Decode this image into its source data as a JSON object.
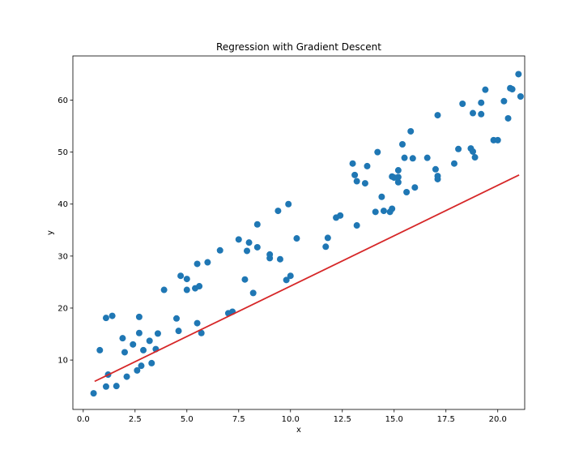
{
  "chart_data": {
    "type": "scatter",
    "title": "Regression with Gradient Descent",
    "xlabel": "x",
    "ylabel": "y",
    "xlim": [
      -0.5,
      21.3
    ],
    "ylim": [
      0.5,
      68.5
    ],
    "xticks": [
      "0.0",
      "2.5",
      "5.0",
      "7.5",
      "10.0",
      "12.5",
      "15.0",
      "17.5",
      "20.0"
    ],
    "yticks": [
      "10",
      "20",
      "30",
      "40",
      "50",
      "60"
    ],
    "grid": false,
    "legend": "none",
    "series": [
      {
        "kind": "scatter",
        "color": "#1f77b4",
        "points": [
          [
            0.5,
            3.6
          ],
          [
            0.8,
            11.9
          ],
          [
            1.1,
            18.1
          ],
          [
            1.1,
            4.9
          ],
          [
            1.2,
            7.2
          ],
          [
            1.4,
            18.5
          ],
          [
            1.6,
            5.0
          ],
          [
            1.9,
            14.2
          ],
          [
            2.0,
            11.5
          ],
          [
            2.1,
            6.8
          ],
          [
            2.4,
            13.0
          ],
          [
            2.6,
            8.0
          ],
          [
            2.7,
            15.2
          ],
          [
            2.7,
            18.3
          ],
          [
            2.8,
            8.9
          ],
          [
            2.9,
            11.9
          ],
          [
            3.2,
            13.7
          ],
          [
            3.3,
            9.4
          ],
          [
            3.5,
            12.1
          ],
          [
            3.6,
            15.1
          ],
          [
            3.9,
            23.5
          ],
          [
            4.5,
            18.0
          ],
          [
            4.6,
            15.6
          ],
          [
            4.7,
            26.2
          ],
          [
            5.0,
            25.6
          ],
          [
            5.0,
            23.5
          ],
          [
            5.4,
            23.8
          ],
          [
            5.5,
            28.5
          ],
          [
            5.5,
            17.1
          ],
          [
            5.6,
            24.2
          ],
          [
            5.7,
            15.2
          ],
          [
            6.0,
            28.8
          ],
          [
            6.6,
            31.1
          ],
          [
            7.0,
            19.0
          ],
          [
            7.2,
            19.3
          ],
          [
            7.5,
            33.2
          ],
          [
            7.8,
            25.5
          ],
          [
            7.9,
            31.0
          ],
          [
            8.0,
            32.6
          ],
          [
            8.2,
            22.9
          ],
          [
            8.4,
            36.1
          ],
          [
            8.4,
            31.7
          ],
          [
            9.0,
            29.6
          ],
          [
            9.0,
            30.3
          ],
          [
            9.4,
            38.7
          ],
          [
            9.5,
            29.4
          ],
          [
            9.8,
            25.4
          ],
          [
            9.9,
            40.0
          ],
          [
            10.0,
            26.2
          ],
          [
            10.3,
            33.4
          ],
          [
            11.7,
            31.8
          ],
          [
            11.8,
            33.5
          ],
          [
            12.2,
            37.4
          ],
          [
            12.4,
            37.8
          ],
          [
            13.0,
            47.8
          ],
          [
            13.1,
            45.6
          ],
          [
            13.2,
            44.4
          ],
          [
            13.2,
            35.9
          ],
          [
            13.6,
            44.0
          ],
          [
            13.7,
            47.3
          ],
          [
            14.1,
            38.5
          ],
          [
            14.2,
            50.0
          ],
          [
            14.4,
            41.4
          ],
          [
            14.5,
            38.7
          ],
          [
            14.8,
            38.5
          ],
          [
            14.9,
            45.3
          ],
          [
            14.9,
            39.1
          ],
          [
            15.0,
            45.1
          ],
          [
            15.2,
            45.2
          ],
          [
            15.2,
            44.2
          ],
          [
            15.2,
            46.5
          ],
          [
            15.4,
            51.5
          ],
          [
            15.5,
            48.9
          ],
          [
            15.6,
            42.3
          ],
          [
            15.8,
            54.0
          ],
          [
            15.9,
            48.8
          ],
          [
            16.0,
            43.2
          ],
          [
            16.6,
            48.9
          ],
          [
            17.0,
            46.7
          ],
          [
            17.1,
            45.4
          ],
          [
            17.1,
            44.8
          ],
          [
            17.1,
            57.1
          ],
          [
            17.9,
            47.8
          ],
          [
            18.1,
            50.6
          ],
          [
            18.3,
            59.3
          ],
          [
            18.7,
            50.7
          ],
          [
            18.8,
            57.5
          ],
          [
            18.8,
            50.1
          ],
          [
            18.9,
            49.0
          ],
          [
            19.2,
            59.5
          ],
          [
            19.2,
            57.3
          ],
          [
            19.4,
            62.0
          ],
          [
            19.8,
            52.3
          ],
          [
            20.0,
            52.3
          ],
          [
            20.3,
            59.8
          ],
          [
            20.5,
            56.5
          ],
          [
            20.6,
            62.3
          ],
          [
            20.7,
            62.1
          ],
          [
            21.0,
            65.0
          ],
          [
            21.1,
            60.7
          ]
        ]
      },
      {
        "kind": "line",
        "color": "#d62728",
        "points": [
          [
            0.55,
            5.9
          ],
          [
            21.03,
            45.6
          ]
        ]
      }
    ]
  }
}
